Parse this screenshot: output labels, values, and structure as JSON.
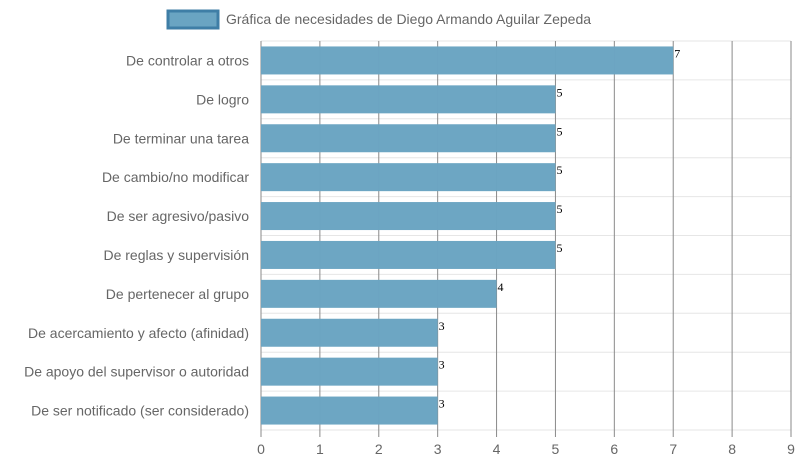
{
  "chart_data": {
    "type": "bar",
    "orientation": "horizontal",
    "legend": {
      "position": "top",
      "entries": [
        "Gráfica de necesidades de Diego Armando Aguilar Zepeda"
      ]
    },
    "series": [
      {
        "name": "Gráfica de necesidades de Diego Armando Aguilar Zepeda",
        "color": "#6aa4c2",
        "border_color": "#3f7ea6",
        "values": [
          7,
          5,
          5,
          5,
          5,
          5,
          4,
          3,
          3,
          3
        ]
      }
    ],
    "categories": [
      "De controlar a otros",
      "De logro",
      "De terminar una tarea",
      "De cambio/no modificar",
      "De ser agresivo/pasivo",
      "De reglas y supervisión",
      "De pertenecer al grupo",
      "De acercamiento y afecto (afinidad)",
      "De apoyo del supervisor o autoridad",
      "De ser notificado (ser considerado)"
    ],
    "x_ticks": [
      "0",
      "1",
      "2",
      "3",
      "4",
      "5",
      "6",
      "7",
      "8",
      "9"
    ],
    "xlim": [
      0,
      9
    ],
    "grid": true,
    "data_labels": true,
    "grid_colors": {
      "vertical": "#8a8a8a",
      "horizontal": "#e6e6e6"
    }
  }
}
